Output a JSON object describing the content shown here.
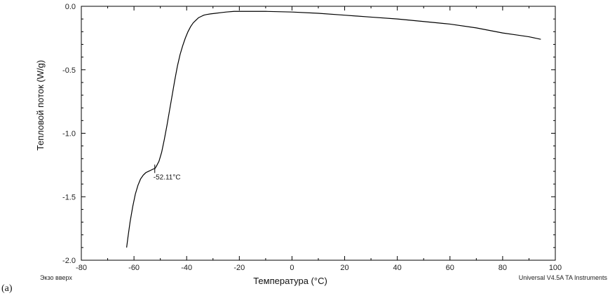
{
  "panel_label": "(a)",
  "chart_data": {
    "type": "line",
    "xlabel": "Температура (°C)",
    "ylabel": "Тепловой поток (W/g)",
    "xlim": [
      -80,
      100
    ],
    "ylim": [
      -2.0,
      0.0
    ],
    "x_ticks": [
      -80,
      -60,
      -40,
      -20,
      0,
      20,
      40,
      60,
      80,
      100
    ],
    "x_tick_labels": [
      "-80",
      "-60",
      "-40",
      "-20",
      "0",
      "20",
      "40",
      "60",
      "80",
      "100"
    ],
    "y_ticks": [
      0.0,
      -0.5,
      -1.0,
      -1.5,
      -2.0
    ],
    "y_tick_labels": [
      "0.0",
      "-0.5",
      "-1.0",
      "-1.5",
      "-2.0"
    ],
    "grid": false,
    "corner_left_label": "Экзо вверх",
    "corner_right_label": "Universal V4.5A TA Instruments",
    "annotation": {
      "text": "-52.11°C",
      "x": -52.11,
      "y": -1.28
    },
    "series": [
      {
        "color": "#000000",
        "x": [
          -62.8,
          -62.3,
          -61.5,
          -60.5,
          -59.5,
          -58.5,
          -57.5,
          -56.5,
          -55.5,
          -54.5,
          -53.5,
          -52.5,
          -52.11,
          -51.5,
          -50.5,
          -49.5,
          -48.5,
          -47.5,
          -46.5,
          -45.5,
          -44.5,
          -43.5,
          -42.5,
          -41.5,
          -40.5,
          -39.5,
          -38.5,
          -37.5,
          -36.5,
          -35.5,
          -34.5,
          -33.5,
          -32.5,
          -31.0,
          -29.0,
          -27.0,
          -25.0,
          -22.0,
          -18.0,
          -10.0,
          0.0,
          10.0,
          20.0,
          30.0,
          40.0,
          50.0,
          60.0,
          70.0,
          75.0,
          80.0,
          85.0,
          90.0,
          94.5
        ],
        "y": [
          -1.9,
          -1.82,
          -1.7,
          -1.58,
          -1.48,
          -1.41,
          -1.36,
          -1.33,
          -1.31,
          -1.3,
          -1.29,
          -1.28,
          -1.28,
          -1.26,
          -1.22,
          -1.15,
          -1.05,
          -0.94,
          -0.82,
          -0.7,
          -0.58,
          -0.47,
          -0.38,
          -0.31,
          -0.25,
          -0.2,
          -0.16,
          -0.13,
          -0.11,
          -0.09,
          -0.08,
          -0.07,
          -0.065,
          -0.06,
          -0.055,
          -0.05,
          -0.045,
          -0.04,
          -0.04,
          -0.04,
          -0.045,
          -0.055,
          -0.07,
          -0.085,
          -0.1,
          -0.12,
          -0.14,
          -0.17,
          -0.19,
          -0.21,
          -0.225,
          -0.24,
          -0.26
        ]
      }
    ]
  }
}
